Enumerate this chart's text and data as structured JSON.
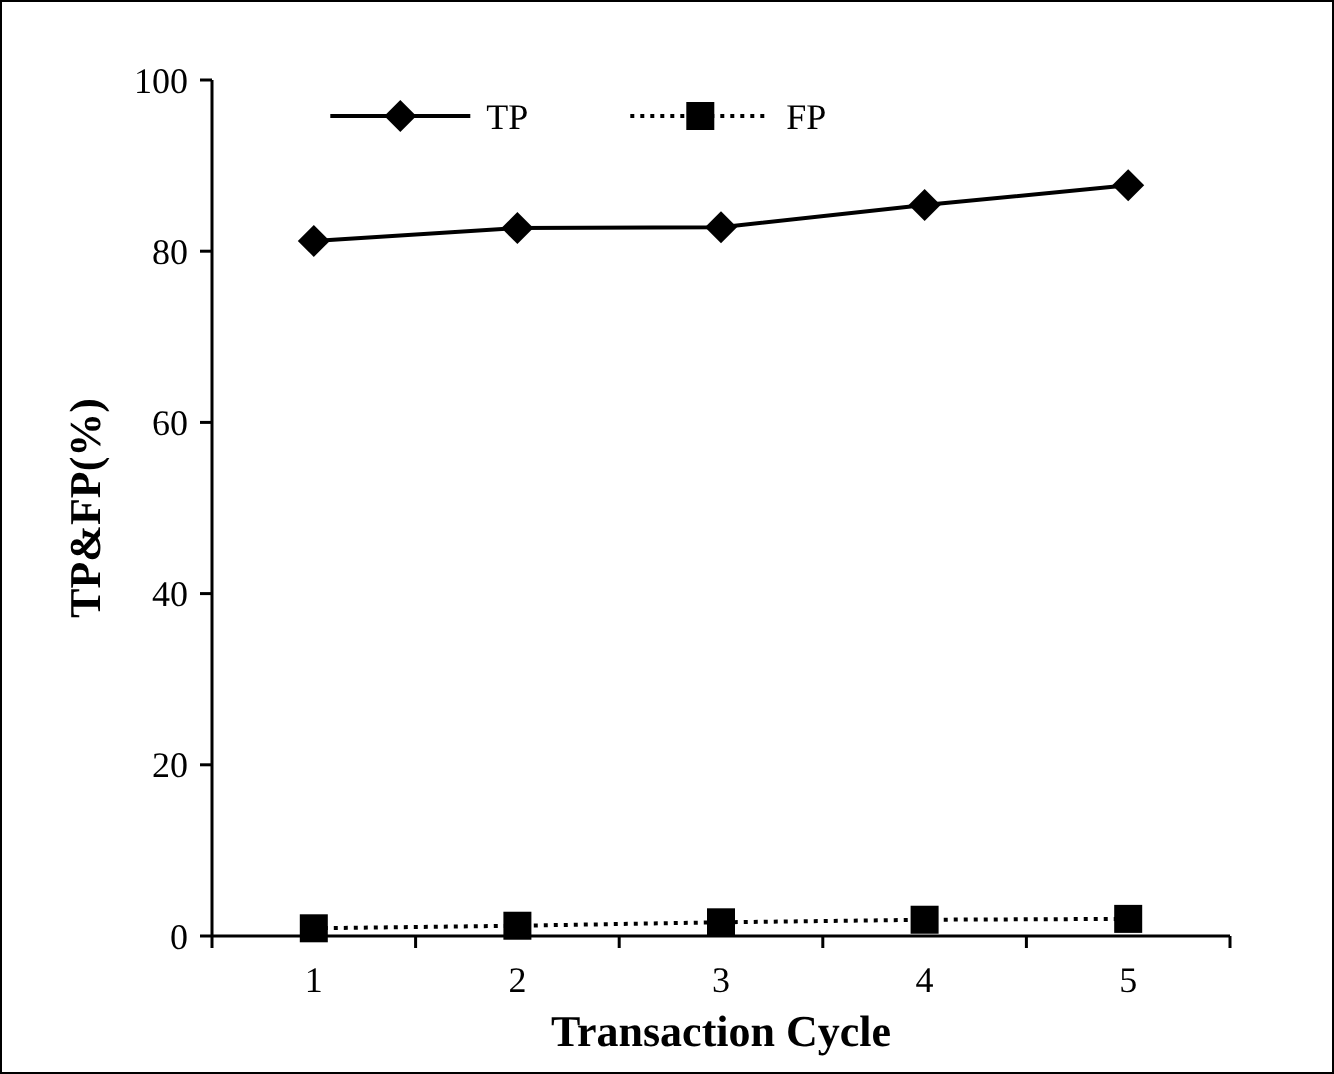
{
  "chart_data": {
    "type": "line",
    "xlabel": "Transaction Cycle",
    "ylabel": "TP&FP(%)",
    "categories": [
      "1",
      "2",
      "3",
      "4",
      "5"
    ],
    "ylim": [
      0,
      100
    ],
    "yticks": [
      0,
      20,
      40,
      60,
      80,
      100
    ],
    "grid": false,
    "legend": "top",
    "series": [
      {
        "name": "TP",
        "color": "#000000",
        "marker": "diamond",
        "line_style": "solid",
        "values": [
          81.2,
          82.7,
          82.8,
          85.4,
          87.7
        ]
      },
      {
        "name": "FP",
        "color": "#000000",
        "marker": "square",
        "line_style": "dotted",
        "values": [
          0.9,
          1.2,
          1.6,
          1.9,
          2.0
        ]
      }
    ]
  }
}
